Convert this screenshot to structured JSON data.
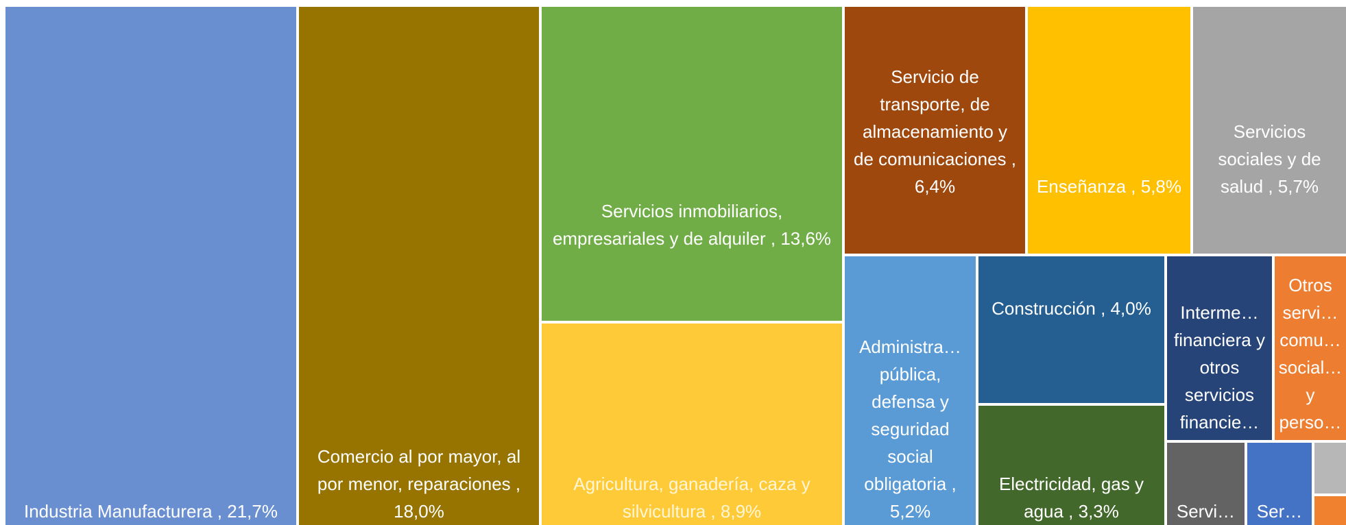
{
  "chart_data": {
    "type": "treemap",
    "categories": [
      "Industria Manufacturera , 21,7%",
      "Comercio al por mayor, al por menor, reparaciones , 18,0%",
      "Servicios inmobiliarios, empresariales y de alquiler , 13,6%",
      "Agricultura, ganadería, caza y silvicultura , 8,9%",
      "Servicio de transporte, de almacenamiento y de comunicaciones , 6,4%",
      "Enseñanza , 5,8%",
      "Servicios sociales y de salud , 5,7%",
      "Administra… pública, defensa y seguridad social obligatoria , 5,2%",
      "Construcción , 4,0%",
      "Electricidad, gas y agua , 3,3%",
      "Interme… financiera y otros servicios financie…",
      "Otros servi… comu… social… y perso…",
      "Servi…",
      "Ser…",
      null,
      null
    ],
    "values": [
      21.7,
      18.0,
      13.6,
      8.9,
      6.4,
      5.8,
      5.7,
      5.2,
      4.0,
      3.3,
      2.6,
      1.8,
      1.1,
      0.9,
      0.4,
      0.3
    ],
    "colors": [
      "#6a8fd0",
      "#977300",
      "#70ad47",
      "#ffca38",
      "#9e480e",
      "#ffc000",
      "#a5a5a5",
      "#5b9bd5",
      "#255e91",
      "#43682b",
      "#264478",
      "#ed7d31",
      "#636363",
      "#4472c4",
      "#b7b7b7",
      "#f0812f"
    ]
  }
}
